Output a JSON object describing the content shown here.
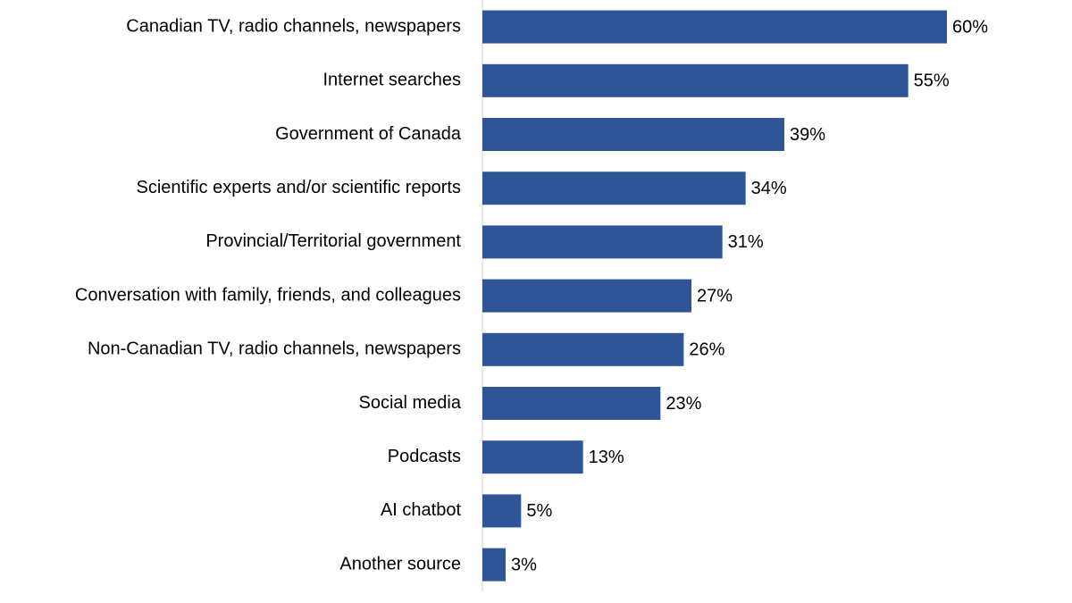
{
  "chart_data": {
    "type": "bar",
    "orientation": "horizontal",
    "categories": [
      "Canadian TV, radio channels, newspapers",
      "Internet searches",
      "Government of Canada",
      "Scientific experts and/or scientific reports",
      "Provincial/Territorial government",
      "Conversation with family, friends, and colleagues",
      "Non-Canadian TV, radio channels, newspapers",
      "Social media",
      "Podcasts",
      "AI chatbot",
      "Another source"
    ],
    "values": [
      60,
      55,
      39,
      34,
      31,
      27,
      26,
      23,
      13,
      5,
      3
    ],
    "value_labels": [
      "60%",
      "55%",
      "39%",
      "34%",
      "31%",
      "27%",
      "26%",
      "23%",
      "13%",
      "5%",
      "3%"
    ],
    "color": "#2f5597"
  }
}
